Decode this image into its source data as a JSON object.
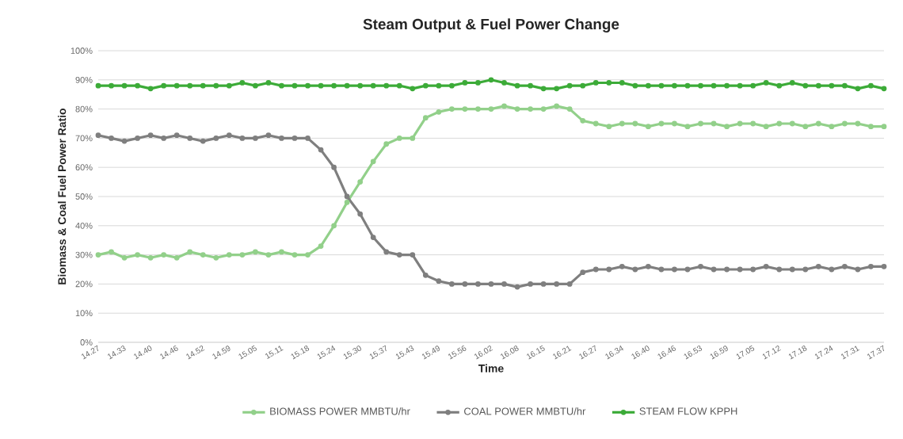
{
  "chart_data": {
    "type": "line",
    "title": "Steam Output & Fuel Power Change",
    "xlabel": "Time",
    "ylabel": "Biomass & Coal Fuel Power Ratio",
    "categories": [
      "14.27",
      null,
      "14.33",
      null,
      "14.40",
      null,
      "14.46",
      null,
      "14.52",
      null,
      "14.59",
      null,
      "15.05",
      null,
      "15.11",
      null,
      "15.18",
      null,
      "15.24",
      null,
      "15.30",
      null,
      "15.37",
      null,
      "15.43",
      null,
      "15.49",
      null,
      "15.56",
      null,
      "16.02",
      null,
      "16.08",
      null,
      "16.15",
      null,
      "16.21",
      null,
      "16.27",
      null,
      "16.34",
      null,
      "16.40",
      null,
      "16.46",
      null,
      "16.53",
      null,
      "16.59",
      null,
      "17.05",
      null,
      "17.12",
      null,
      "17.18",
      null,
      "17.24",
      null,
      "17.31",
      null,
      "17.37"
    ],
    "series": [
      {
        "name": "BIOMASS POWER MMBTU/hr",
        "color": "#92d08a",
        "values": [
          30,
          31,
          29,
          30,
          29,
          30,
          29,
          31,
          30,
          29,
          30,
          30,
          31,
          30,
          31,
          30,
          30,
          33,
          40,
          48,
          55,
          62,
          68,
          70,
          70,
          77,
          79,
          80,
          80,
          80,
          80,
          81,
          80,
          80,
          80,
          81,
          80,
          76,
          75,
          74,
          75,
          75,
          74,
          75,
          75,
          74,
          75,
          75,
          74,
          75,
          75,
          74,
          75,
          75,
          74,
          75,
          74,
          75,
          75,
          74,
          74
        ]
      },
      {
        "name": "COAL POWER MMBTU/hr",
        "color": "#7f7f7f",
        "values": [
          71,
          70,
          69,
          70,
          71,
          70,
          71,
          70,
          69,
          70,
          71,
          70,
          70,
          71,
          70,
          70,
          70,
          66,
          60,
          50,
          44,
          36,
          31,
          30,
          30,
          23,
          21,
          20,
          20,
          20,
          20,
          20,
          19,
          20,
          20,
          20,
          20,
          24,
          25,
          25,
          26,
          25,
          26,
          25,
          25,
          25,
          26,
          25,
          25,
          25,
          25,
          26,
          25,
          25,
          25,
          26,
          25,
          26,
          25,
          26,
          26
        ]
      },
      {
        "name": "STEAM FLOW KPPH",
        "color": "#3cab38",
        "values": [
          88,
          88,
          88,
          88,
          87,
          88,
          88,
          88,
          88,
          88,
          88,
          89,
          88,
          89,
          88,
          88,
          88,
          88,
          88,
          88,
          88,
          88,
          88,
          88,
          87,
          88,
          88,
          88,
          89,
          89,
          90,
          89,
          88,
          88,
          87,
          87,
          88,
          88,
          89,
          89,
          89,
          88,
          88,
          88,
          88,
          88,
          88,
          88,
          88,
          88,
          88,
          89,
          88,
          89,
          88,
          88,
          88,
          88,
          87,
          88,
          87
        ]
      }
    ],
    "ylim": [
      0,
      100
    ],
    "yticks": [
      {
        "value": 0,
        "label": "0%"
      },
      {
        "value": 10,
        "label": "10%"
      },
      {
        "value": 20,
        "label": "20%"
      },
      {
        "value": 30,
        "label": "30%"
      },
      {
        "value": 40,
        "label": "40%"
      },
      {
        "value": 50,
        "label": "50%"
      },
      {
        "value": 60,
        "label": "60%"
      },
      {
        "value": 70,
        "label": "70%"
      },
      {
        "value": 80,
        "label": "80%"
      },
      {
        "value": 90,
        "label": "90%"
      },
      {
        "value": 100,
        "label": "100%"
      }
    ],
    "grid": "y",
    "legend": "bottom",
    "marker": "circle",
    "line_style": "solid"
  }
}
